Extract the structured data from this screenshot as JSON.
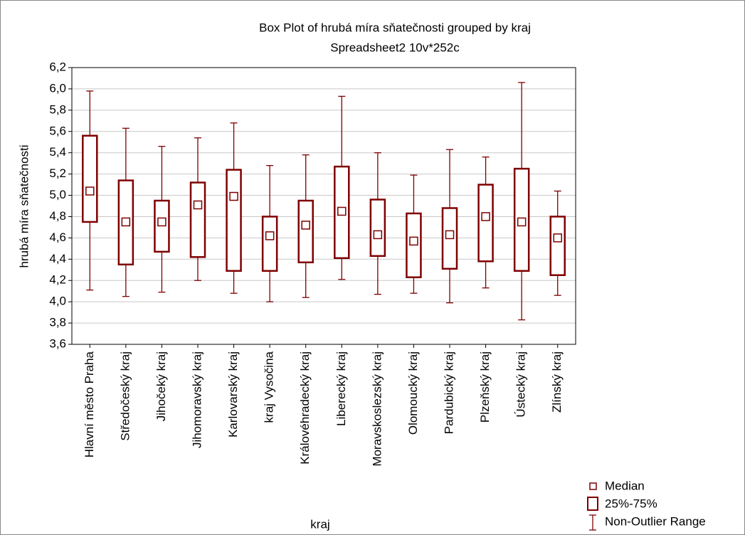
{
  "chart_data": {
    "type": "box",
    "title": "Box Plot of hrubá míra sňatečnosti grouped by  kraj",
    "subtitle": "Spreadsheet2 10v*252c",
    "x_label": "kraj",
    "y_label": "hrubá míra sňatečnosti",
    "color": "#7f0000",
    "grid": true,
    "legend": {
      "median": "Median",
      "box": "25%-75%",
      "whisker": "Non-Outlier Range"
    },
    "categories": [
      "Hlavní město Praha",
      "Středočeský kraj",
      "Jihočeký kraj",
      "Jihomoravský kraj",
      "Karlovarský kraj",
      "kraj Vysočina",
      "Královéhradecký kraj",
      "Liberecký kraj",
      "Moravskoslezský kraj",
      "Olomoucký kraj",
      "Pardubický kraj",
      "Plzeňský kraj",
      "Ústecký kraj",
      "Zlínský kraj"
    ],
    "min": [
      4.11,
      4.05,
      4.09,
      4.2,
      4.08,
      4.0,
      4.04,
      4.21,
      4.07,
      4.08,
      3.99,
      4.13,
      3.83,
      4.06
    ],
    "q1": [
      4.75,
      4.35,
      4.47,
      4.42,
      4.29,
      4.29,
      4.37,
      4.41,
      4.43,
      4.23,
      4.31,
      4.38,
      4.29,
      4.25
    ],
    "median": [
      5.04,
      4.75,
      4.75,
      4.91,
      4.99,
      4.62,
      4.72,
      4.85,
      4.63,
      4.57,
      4.63,
      4.8,
      4.75,
      4.6
    ],
    "q3": [
      5.56,
      5.14,
      4.95,
      5.12,
      5.24,
      4.8,
      4.95,
      5.27,
      4.96,
      4.83,
      4.88,
      5.1,
      5.25,
      4.8
    ],
    "max": [
      5.98,
      5.63,
      5.46,
      5.54,
      5.68,
      5.28,
      5.38,
      5.93,
      5.4,
      5.19,
      5.43,
      5.36,
      6.06,
      5.04
    ],
    "ylim": [
      3.6,
      6.2
    ],
    "yticks": [
      {
        "value": 3.6,
        "label": "3,6"
      },
      {
        "value": 3.8,
        "label": "3,8"
      },
      {
        "value": 4.0,
        "label": "4,0"
      },
      {
        "value": 4.2,
        "label": "4,2"
      },
      {
        "value": 4.4,
        "label": "4,4"
      },
      {
        "value": 4.6,
        "label": "4,6"
      },
      {
        "value": 4.8,
        "label": "4,8"
      },
      {
        "value": 5.0,
        "label": "5,0"
      },
      {
        "value": 5.2,
        "label": "5,2"
      },
      {
        "value": 5.4,
        "label": "5,4"
      },
      {
        "value": 5.6,
        "label": "5,6"
      },
      {
        "value": 5.8,
        "label": "5,8"
      },
      {
        "value": 6.0,
        "label": "6,0"
      },
      {
        "value": 6.2,
        "label": "6,2"
      }
    ]
  }
}
